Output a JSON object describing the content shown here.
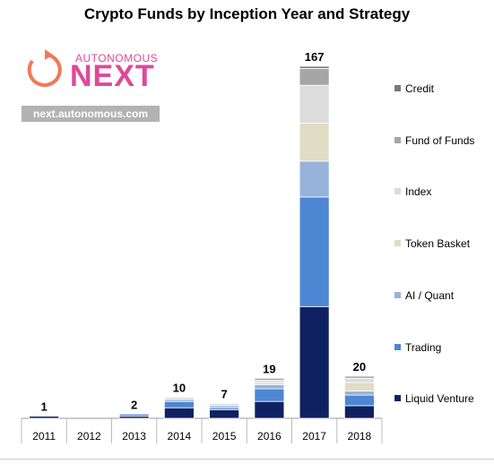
{
  "chart_data": {
    "type": "bar",
    "stacked": true,
    "title": "Crypto Funds by Inception Year and Strategy",
    "categories": [
      "2011",
      "2012",
      "2013",
      "2014",
      "2015",
      "2016",
      "2017",
      "2018"
    ],
    "totals": [
      1,
      0,
      2,
      10,
      7,
      19,
      167,
      20
    ],
    "total_labels": [
      "1",
      "",
      "2",
      "10",
      "7",
      "19",
      "167",
      "20"
    ],
    "ylim": [
      0,
      167
    ],
    "grid": false,
    "legend_position": "right",
    "series": [
      {
        "name": "Liquid Venture",
        "color": "#0f2160",
        "values": [
          1,
          0,
          1,
          5,
          4,
          8,
          53,
          6
        ]
      },
      {
        "name": "Trading",
        "color": "#4d86d3",
        "values": [
          0,
          0,
          1,
          3,
          1,
          6,
          52,
          5
        ]
      },
      {
        "name": "AI / Quant",
        "color": "#96b3db",
        "values": [
          0,
          0,
          0,
          1,
          1,
          2,
          17,
          2
        ]
      },
      {
        "name": "Token Basket",
        "color": "#e1dcc4",
        "values": [
          0,
          0,
          0,
          0,
          0,
          1,
          18,
          4
        ]
      },
      {
        "name": "Index",
        "color": "#dcdcdc",
        "values": [
          0,
          0,
          0,
          1,
          1,
          1,
          18,
          2
        ]
      },
      {
        "name": "Fund of Funds",
        "color": "#a6a6a6",
        "values": [
          0,
          0,
          0,
          0,
          0,
          1,
          8,
          1
        ]
      },
      {
        "name": "Credit",
        "color": "#7a7a7a",
        "values": [
          0,
          0,
          0,
          0,
          0,
          0,
          1,
          0
        ]
      }
    ],
    "legend_order": [
      "Credit",
      "Fund of Funds",
      "Index",
      "Token Basket",
      "AI / Quant",
      "Trading",
      "Liquid Venture"
    ]
  },
  "logo": {
    "top_text": "AUTONOMOUS",
    "main_text": "NEXT",
    "url": "next.autonomous.com",
    "color": "#e0489a",
    "arrow_color": "#f0785a"
  }
}
